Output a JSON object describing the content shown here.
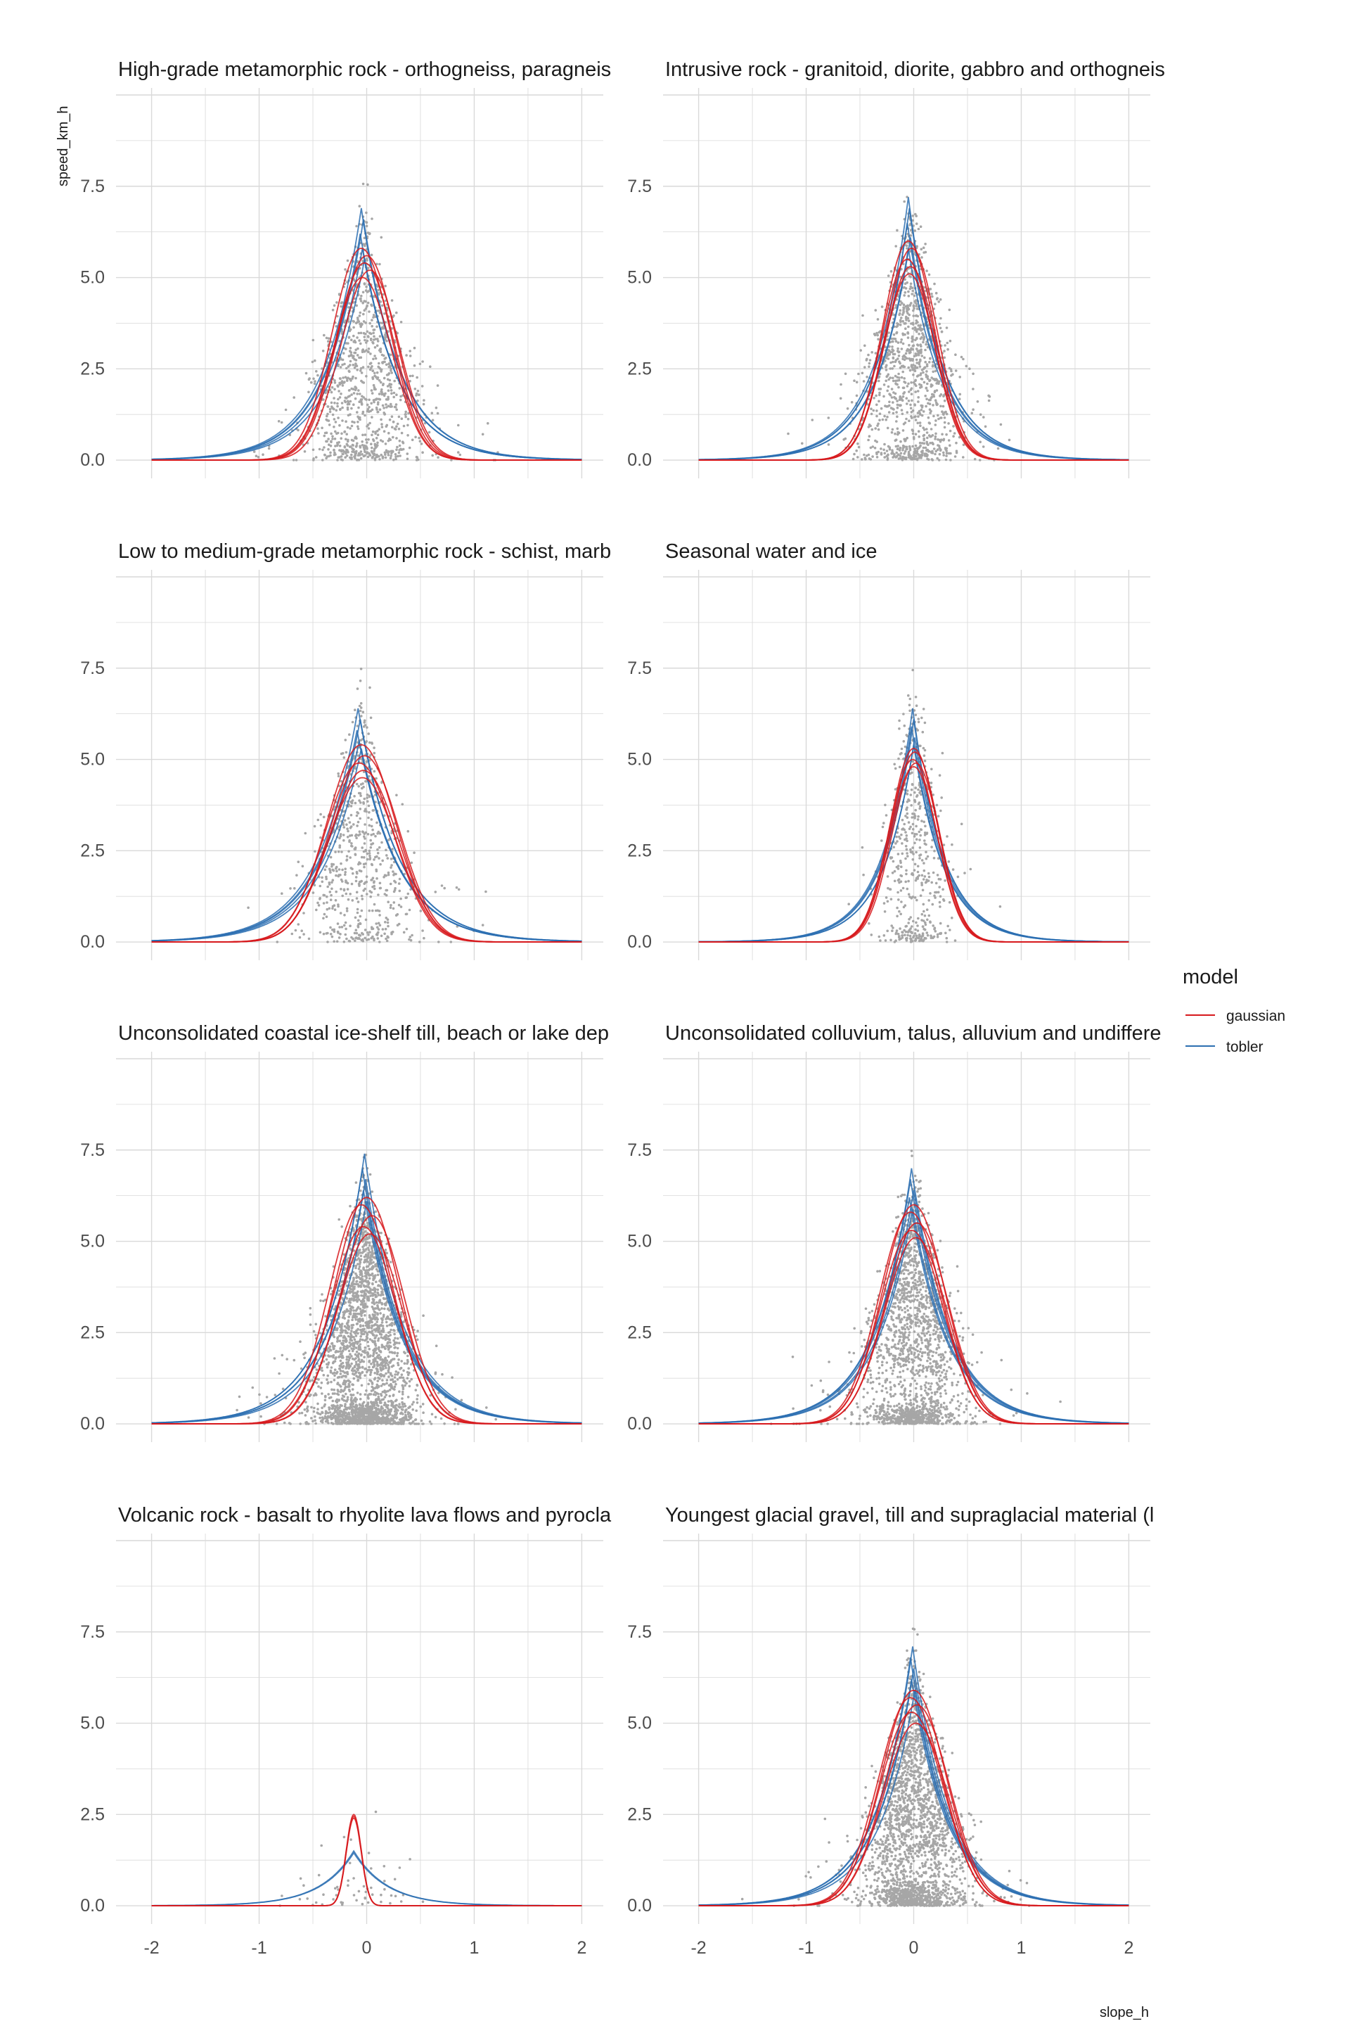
{
  "chart_data": {
    "type": "scatter",
    "xlabel": "slope_h",
    "ylabel": "speed_km_h",
    "xlim": [
      -2,
      2
    ],
    "ylim": [
      0,
      10
    ],
    "x_ticks": [
      "-2",
      "-1",
      "0",
      "1",
      "2"
    ],
    "y_ticks": [
      "0.0",
      "2.5",
      "5.0",
      "7.5"
    ],
    "x_tick_values": [
      -2,
      -1,
      0,
      1,
      2
    ],
    "y_tick_values": [
      0,
      2.5,
      5,
      7.5
    ],
    "grid": true,
    "legend": {
      "title": "model",
      "placement": "right",
      "entries": [
        {
          "label": "gaussian",
          "color": "#d7191c"
        },
        {
          "label": "tobler",
          "color": "#2c6fb1"
        }
      ]
    },
    "point_color": "#a6a6a6",
    "panels": [
      {
        "title": "High-grade metamorphic rock - orthogneiss, paragneis",
        "gaussian_peaks": [
          5.8,
          5.6,
          5.4,
          5.2,
          5.0
        ],
        "gaussian_centers": [
          -0.05,
          0.0,
          -0.02,
          0.03,
          -0.04
        ],
        "gaussian_sigma": 0.27,
        "tobler_peaks": [
          6.9,
          6.6,
          6.2,
          5.8,
          5.5
        ],
        "tobler_centers": [
          -0.05,
          -0.03,
          -0.06,
          -0.04,
          -0.02
        ],
        "tobler_k": 2.9,
        "points": {
          "count": 1100,
          "center": -0.02,
          "spread": 0.22,
          "mean": 3.2,
          "max": 8.4,
          "bottom_fraction": 0.18
        }
      },
      {
        "title": "Intrusive rock - granitoid, diorite, gabbro and orthogneis",
        "gaussian_peaks": [
          6.0,
          5.8,
          5.5,
          5.3,
          5.1
        ],
        "gaussian_centers": [
          -0.05,
          -0.02,
          -0.06,
          -0.03,
          -0.04
        ],
        "gaussian_sigma": 0.24,
        "tobler_peaks": [
          7.2,
          6.9,
          6.5,
          6.1,
          5.8
        ],
        "tobler_centers": [
          -0.05,
          -0.04,
          -0.06,
          -0.03,
          -0.05
        ],
        "tobler_k": 3.2,
        "points": {
          "count": 1200,
          "center": -0.03,
          "spread": 0.2,
          "mean": 3.3,
          "max": 9.0,
          "bottom_fraction": 0.2
        }
      },
      {
        "title": "Low to medium-grade metamorphic rock - schist, marb",
        "gaussian_peaks": [
          5.4,
          5.1,
          4.9,
          4.7,
          4.5
        ],
        "gaussian_centers": [
          -0.05,
          -0.02,
          -0.07,
          -0.03,
          -0.04
        ],
        "gaussian_sigma": 0.32,
        "tobler_peaks": [
          6.4,
          6.1,
          5.8,
          5.5,
          5.3
        ],
        "tobler_centers": [
          -0.08,
          -0.06,
          -0.09,
          -0.07,
          -0.05
        ],
        "tobler_k": 2.7,
        "points": {
          "count": 700,
          "center": -0.05,
          "spread": 0.22,
          "mean": 3.0,
          "max": 8.9,
          "bottom_fraction": 0.15
        }
      },
      {
        "title": "Seasonal water and ice",
        "gaussian_peaks": [
          5.3,
          5.2,
          5.0,
          4.9,
          4.8
        ],
        "gaussian_centers": [
          0.0,
          0.01,
          -0.01,
          0.02,
          0.0
        ],
        "gaussian_sigma": 0.22,
        "tobler_peaks": [
          6.4,
          6.1,
          5.9,
          5.6,
          5.4
        ],
        "tobler_centers": [
          -0.01,
          0.0,
          -0.02,
          0.01,
          0.0
        ],
        "tobler_k": 3.5,
        "points": {
          "count": 550,
          "center": 0.0,
          "spread": 0.13,
          "mean": 3.2,
          "max": 8.2,
          "bottom_fraction": 0.2
        }
      },
      {
        "title": "Unconsolidated coastal ice-shelf till, beach or lake dep",
        "gaussian_peaks": [
          6.2,
          6.0,
          5.7,
          5.4,
          5.2
        ],
        "gaussian_centers": [
          0.0,
          -0.05,
          0.05,
          -0.03,
          0.03
        ],
        "gaussian_sigma": 0.3,
        "tobler_peaks": [
          7.4,
          7.0,
          6.7,
          6.4,
          6.1
        ],
        "tobler_centers": [
          -0.02,
          -0.04,
          -0.01,
          -0.03,
          0.0
        ],
        "tobler_k": 2.8,
        "points": {
          "count": 2600,
          "center": -0.02,
          "spread": 0.2,
          "mean": 3.0,
          "max": 9.5,
          "bottom_fraction": 0.3
        }
      },
      {
        "title": "Unconsolidated colluvium, talus, alluvium and undiffere",
        "gaussian_peaks": [
          6.0,
          5.8,
          5.5,
          5.3,
          5.1
        ],
        "gaussian_centers": [
          0.0,
          -0.03,
          0.03,
          -0.02,
          0.02
        ],
        "gaussian_sigma": 0.29,
        "tobler_peaks": [
          7.0,
          6.7,
          6.4,
          6.2,
          5.9
        ],
        "tobler_centers": [
          -0.02,
          -0.03,
          0.0,
          -0.04,
          -0.01
        ],
        "tobler_k": 2.9,
        "points": {
          "count": 1800,
          "center": 0.0,
          "spread": 0.2,
          "mean": 3.1,
          "max": 9.2,
          "bottom_fraction": 0.28
        }
      },
      {
        "title": "Volcanic rock - basalt to rhyolite lava flows and pyrocla",
        "gaussian_peaks": [
          2.5,
          2.45,
          2.4
        ],
        "gaussian_centers": [
          -0.12,
          -0.12,
          -0.12
        ],
        "gaussian_sigma": 0.07,
        "tobler_peaks": [
          1.5,
          1.45
        ],
        "tobler_centers": [
          -0.12,
          -0.12
        ],
        "tobler_k": 3.2,
        "points": {
          "count": 55,
          "center": -0.1,
          "spread": 0.3,
          "mean": 0.5,
          "max": 4.5,
          "bottom_fraction": 0.7
        }
      },
      {
        "title": "Youngest glacial gravel, till and supraglacial material (l",
        "gaussian_peaks": [
          5.9,
          5.7,
          5.5,
          5.3,
          5.0
        ],
        "gaussian_centers": [
          0.0,
          -0.03,
          0.03,
          -0.02,
          0.02
        ],
        "gaussian_sigma": 0.3,
        "tobler_peaks": [
          7.1,
          6.8,
          6.5,
          6.2,
          5.9
        ],
        "tobler_centers": [
          -0.01,
          -0.03,
          0.0,
          -0.02,
          0.01
        ],
        "tobler_k": 3.0,
        "points": {
          "count": 2200,
          "center": 0.0,
          "spread": 0.2,
          "mean": 3.0,
          "max": 8.8,
          "bottom_fraction": 0.28
        }
      }
    ]
  }
}
